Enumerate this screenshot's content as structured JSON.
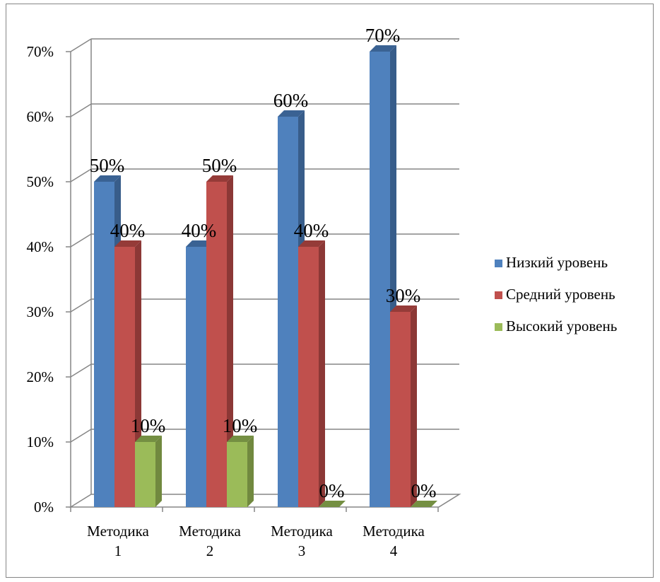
{
  "chart_data": {
    "type": "bar",
    "style": "3d-clustered-column",
    "categories": [
      [
        "Методика",
        "1"
      ],
      [
        "Методика",
        "2"
      ],
      [
        "Методика",
        "3"
      ],
      [
        "Методика",
        "4"
      ]
    ],
    "series": [
      {
        "name": "Низкий уровень",
        "values": [
          50,
          40,
          60,
          70
        ],
        "labels": [
          "50%",
          "40%",
          "60%",
          "70%"
        ],
        "color": "#4F81BD",
        "side_color": "#385D8A",
        "top_color": "#3A6293"
      },
      {
        "name": "Средний уровень",
        "values": [
          40,
          50,
          40,
          30
        ],
        "labels": [
          "40%",
          "50%",
          "40%",
          "30%"
        ],
        "color": "#C0504D",
        "side_color": "#8C3836",
        "top_color": "#953B38"
      },
      {
        "name": "Высокий уровень",
        "values": [
          10,
          10,
          0,
          0
        ],
        "labels": [
          "10%",
          "10%",
          "0%",
          "0%"
        ],
        "color": "#9BBB59",
        "side_color": "#71893F",
        "top_color": "#748F42"
      }
    ],
    "y_ticks": [
      "0%",
      "10%",
      "20%",
      "30%",
      "40%",
      "50%",
      "60%",
      "70%"
    ],
    "ylim": [
      0,
      70
    ],
    "grid": true,
    "legend_position": "right",
    "title": "",
    "xlabel": "",
    "ylabel": ""
  }
}
